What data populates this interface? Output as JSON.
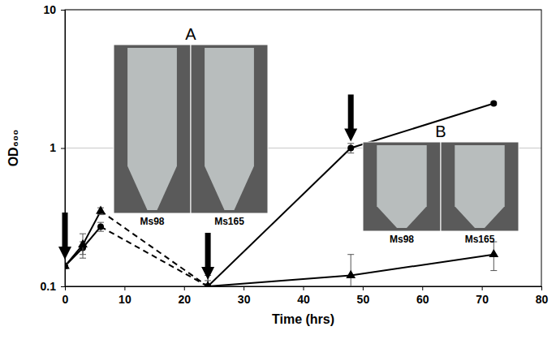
{
  "chart_data": {
    "type": "line",
    "x_label": "Time (hrs)",
    "y_label": "OD₆₀₀",
    "log": "y",
    "grid": true,
    "xlim": [
      0,
      80
    ],
    "xticks": [
      0,
      10,
      20,
      30,
      40,
      50,
      60,
      70,
      80
    ],
    "ylim": [
      0.1,
      10
    ],
    "yticks": [
      0.1,
      1,
      10
    ],
    "series": [
      {
        "color": "#000000",
        "marker": "circle",
        "line_style": "solid",
        "x": [
          0,
          3,
          6
        ],
        "values": [
          0.14,
          0.19,
          0.27
        ],
        "errors": [
          0.005,
          0.02,
          0.02
        ]
      },
      {
        "color": "#000000",
        "marker": "none",
        "line_style": "dashed",
        "x": [
          6,
          24
        ],
        "values": [
          0.27,
          0.1
        ]
      },
      {
        "color": "#000000",
        "marker": "circle",
        "line_style": "solid",
        "x": [
          24,
          48,
          72
        ],
        "values": [
          0.1,
          1.0,
          2.1
        ],
        "errors": [
          0.01,
          0.08,
          0.05
        ]
      },
      {
        "color": "#000000",
        "marker": "triangle",
        "line_style": "solid",
        "x": [
          0,
          3,
          6
        ],
        "values": [
          0.14,
          0.2,
          0.35
        ],
        "errors": [
          0.005,
          0.04,
          0.02
        ]
      },
      {
        "color": "#000000",
        "marker": "none",
        "line_style": "dashed",
        "x": [
          6,
          24
        ],
        "values": [
          0.35,
          0.1
        ]
      },
      {
        "color": "#000000",
        "marker": "triangle",
        "line_style": "solid",
        "x": [
          24,
          48,
          72
        ],
        "values": [
          0.1,
          0.12,
          0.17
        ],
        "errors": [
          0.02,
          0.05,
          0.04
        ]
      }
    ],
    "arrows": [
      0,
      24,
      48
    ],
    "insets": [
      {
        "label": "A",
        "tubes": [
          "Ms98",
          "Ms165"
        ]
      },
      {
        "label": "B",
        "tubes": [
          "Ms98",
          "Ms165"
        ]
      }
    ]
  }
}
